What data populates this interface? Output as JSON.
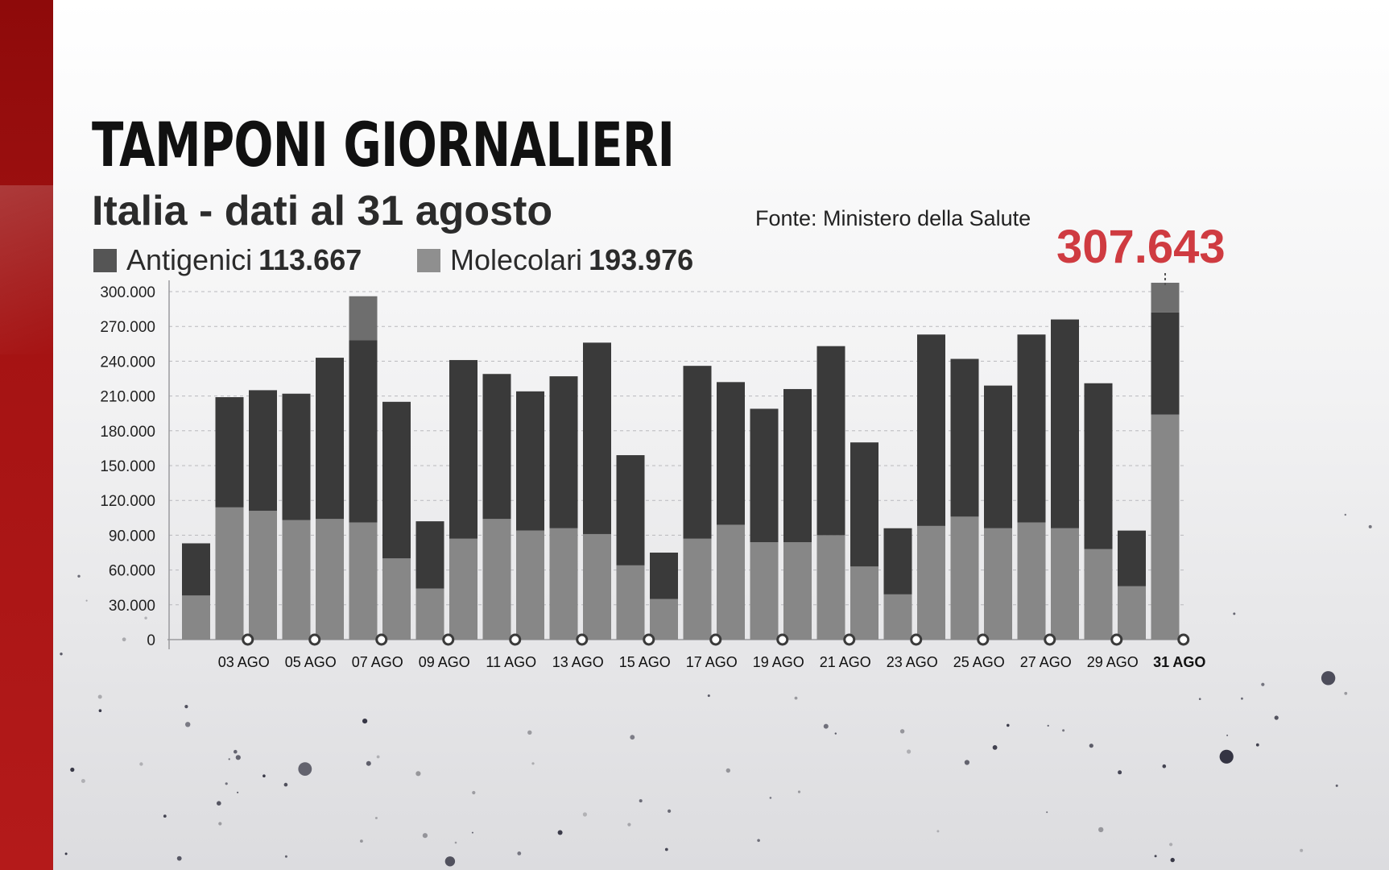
{
  "colors": {
    "antigenici": "#3a3a3a",
    "molecolari": "#878787",
    "highlight_top": "#6e6e6e",
    "accent": "#cf3b41",
    "brand_red": "#a51313"
  },
  "header": {
    "title": "TAMPONI GIORNALIERI",
    "subtitle": "Italia - dati al 31 agosto",
    "source": "Fonte: Ministero della Salute"
  },
  "legend": [
    {
      "name": "Antigenici",
      "value": "113.667",
      "color": "#555555"
    },
    {
      "name": "Molecolari",
      "value": "193.976",
      "color": "#8f8f8f"
    }
  ],
  "total_label": "307.643",
  "chart_data": {
    "type": "bar",
    "stacked": true,
    "y_tick_labels": [
      "0",
      "30.000",
      "60.000",
      "90.000",
      "120.000",
      "150.000",
      "180.000",
      "210.000",
      "240.000",
      "270.000",
      "300.000"
    ],
    "ylim": [
      0,
      300000
    ],
    "grid": true,
    "legend_position": "top-left",
    "x_tick_labels": [
      {
        "label": "03 AGO",
        "bold": false
      },
      {
        "label": "05 AGO",
        "bold": false
      },
      {
        "label": "07 AGO",
        "bold": false
      },
      {
        "label": "09 AGO",
        "bold": false
      },
      {
        "label": "11 AGO",
        "bold": false
      },
      {
        "label": "13 AGO",
        "bold": false
      },
      {
        "label": "15 AGO",
        "bold": false
      },
      {
        "label": "17 AGO",
        "bold": false
      },
      {
        "label": "19 AGO",
        "bold": false
      },
      {
        "label": "21 AGO",
        "bold": false
      },
      {
        "label": "23 AGO",
        "bold": false
      },
      {
        "label": "25 AGO",
        "bold": false
      },
      {
        "label": "27 AGO",
        "bold": false
      },
      {
        "label": "29 AGO",
        "bold": false
      },
      {
        "label": "31 AGO",
        "bold": true
      }
    ],
    "dates": [
      "02 AGO",
      "03 AGO",
      "04 AGO",
      "05 AGO",
      "06 AGO",
      "07 AGO",
      "08 AGO",
      "09 AGO",
      "10 AGO",
      "11 AGO",
      "12 AGO",
      "13 AGO",
      "14 AGO",
      "15 AGO",
      "16 AGO",
      "17 AGO",
      "18 AGO",
      "19 AGO",
      "20 AGO",
      "21 AGO",
      "22 AGO",
      "23 AGO",
      "24 AGO",
      "25 AGO",
      "26 AGO",
      "27 AGO",
      "28 AGO",
      "29 AGO",
      "30 AGO",
      "31 AGO"
    ],
    "series": [
      {
        "name": "Molecolari",
        "values": [
          38000,
          114000,
          111000,
          103000,
          104000,
          101000,
          70000,
          44000,
          87000,
          104000,
          94000,
          96000,
          91000,
          64000,
          35000,
          87000,
          99000,
          84000,
          84000,
          90000,
          63000,
          39000,
          98000,
          106000,
          96000,
          101000,
          96000,
          78000,
          46000,
          193976
        ]
      },
      {
        "name": "Antigenici",
        "values": [
          45000,
          95000,
          104000,
          109000,
          139000,
          195000,
          135000,
          58000,
          154000,
          125000,
          120000,
          131000,
          165000,
          95000,
          40000,
          149000,
          123000,
          115000,
          132000,
          163000,
          107000,
          57000,
          165000,
          136000,
          123000,
          162000,
          180000,
          143000,
          48000,
          113667
        ]
      }
    ]
  }
}
